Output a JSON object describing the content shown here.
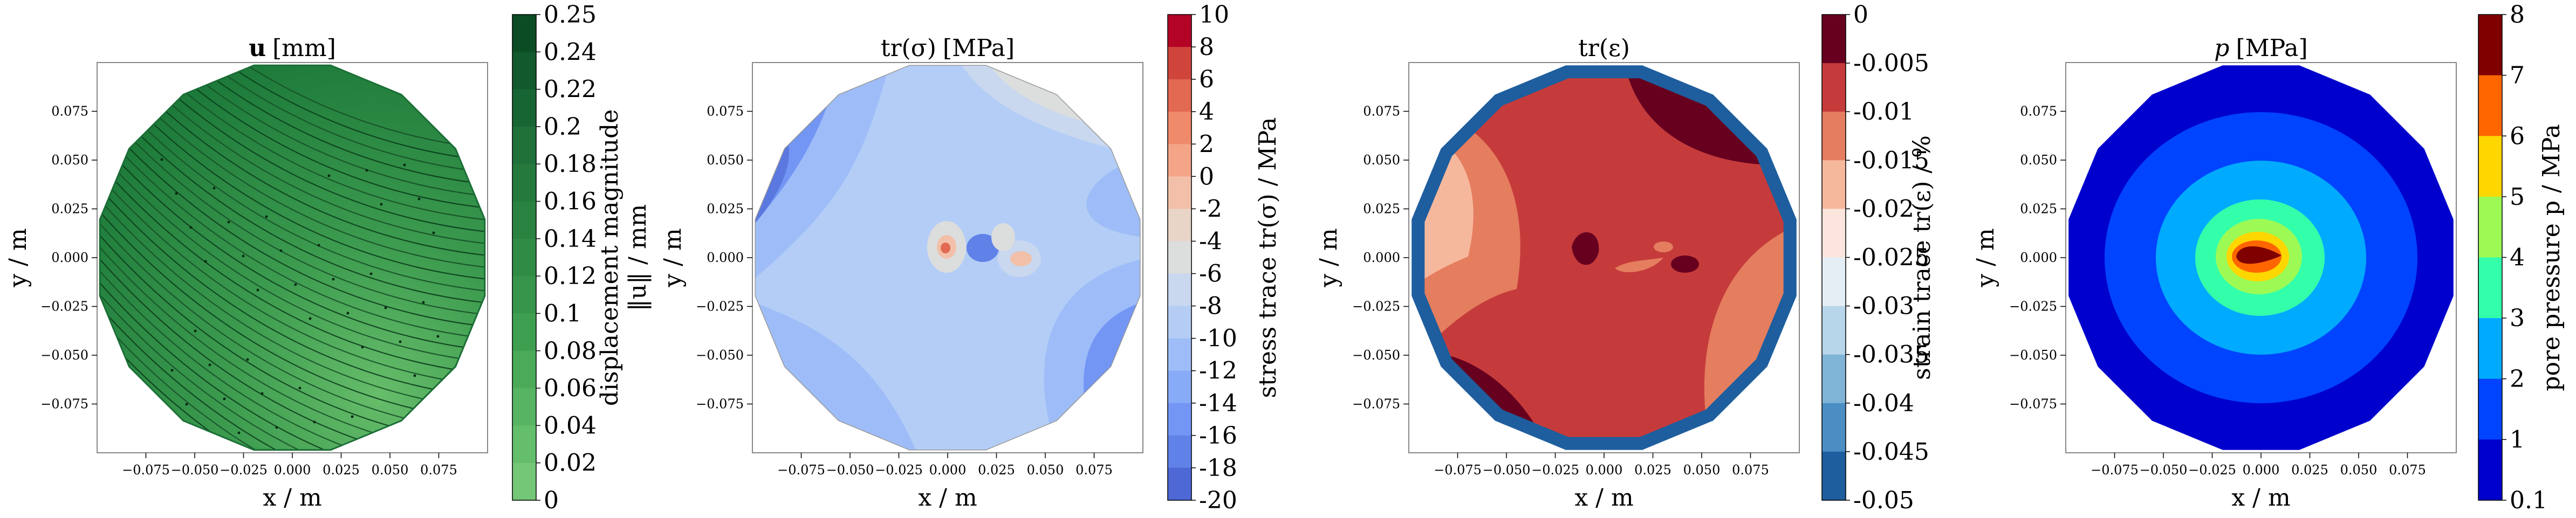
{
  "chart_data": [
    {
      "type": "contour",
      "title_main": "u",
      "title_unit": "[mm]",
      "xlabel": "x / m",
      "ylabel": "y / m",
      "xticks": [
        "−0.075",
        "−0.050",
        "−0.025",
        "0.000",
        "0.025",
        "0.050",
        "0.075"
      ],
      "yticks": [
        "0.075",
        "0.050",
        "0.025",
        "0.000",
        "−0.025",
        "−0.050",
        "−0.075"
      ],
      "xlim": [
        -0.1,
        0.1
      ],
      "ylim": [
        -0.1,
        0.1
      ],
      "colorbar": {
        "label_line1": "displacement magnitude",
        "label_line2": "‖u‖ / mm",
        "ticks": [
          "0.25",
          "0.24",
          "0.22",
          "0.2",
          "0.18",
          "0.16",
          "0.14",
          "0.12",
          "0.1",
          "0.08",
          "0.06",
          "0.04",
          "0.02",
          "0"
        ],
        "colors": [
          "#0b4c25",
          "#12592d",
          "#186534",
          "#1f7039",
          "#25793d",
          "#2a8240",
          "#308b45",
          "#37954b",
          "#3e9f51",
          "#4aaa59",
          "#56b463",
          "#64be6c",
          "#74c776"
        ]
      },
      "field": {
        "description": "nearly uniform green displacement with streamlines",
        "fill": "#2e8b43"
      }
    },
    {
      "type": "contour",
      "title_main": "tr(σ)",
      "title_unit": "[MPa]",
      "xlabel": "x / m",
      "ylabel": "y / m",
      "xticks": [
        "−0.075",
        "−0.050",
        "−0.025",
        "0.000",
        "0.025",
        "0.050",
        "0.075"
      ],
      "yticks": [
        "0.075",
        "0.050",
        "0.025",
        "0.000",
        "−0.025",
        "−0.050",
        "−0.075"
      ],
      "xlim": [
        -0.1,
        0.1
      ],
      "ylim": [
        -0.1,
        0.1
      ],
      "colorbar": {
        "label_line1": "stress trace tr(σ) / MPa",
        "ticks": [
          "10",
          "8",
          "6",
          "4",
          "2",
          "0",
          "-2",
          "-4",
          "-6",
          "-8",
          "-10",
          "-12",
          "-14",
          "-16",
          "-18",
          "-20"
        ],
        "colors": [
          "#b40426",
          "#cf453c",
          "#e26952",
          "#ef8a6a",
          "#f4a587",
          "#f2c0a9",
          "#e9d5c8",
          "#dcdddd",
          "#c9d7ef",
          "#b5cdf5",
          "#9ebdf8",
          "#88abf7",
          "#7396f5",
          "#6081e8",
          "#4e68d6"
        ]
      }
    },
    {
      "type": "contour",
      "title_main": "tr(ε)",
      "title_unit": "",
      "xlabel": "x / m",
      "ylabel": "y / m",
      "xticks": [
        "−0.075",
        "−0.050",
        "−0.025",
        "0.000",
        "0.025",
        "0.050",
        "0.075"
      ],
      "yticks": [
        "0.075",
        "0.050",
        "0.025",
        "0.000",
        "−0.025",
        "−0.050",
        "−0.075"
      ],
      "xlim": [
        -0.1,
        0.1
      ],
      "ylim": [
        -0.1,
        0.1
      ],
      "colorbar": {
        "label_line1": "strain trace tr(ε) / %",
        "ticks": [
          "0",
          "-0.005",
          "-0.01",
          "-0.015",
          "-0.02",
          "-0.025",
          "-0.03",
          "-0.035",
          "-0.04",
          "-0.045",
          "-0.05"
        ],
        "colors": [
          "#67001f",
          "#c53b3b",
          "#e57d5f",
          "#f6b89c",
          "#fce5dc",
          "#e6eef5",
          "#b8d6e9",
          "#7fb4d7",
          "#4a8ec3",
          "#1e5e9e"
        ]
      }
    },
    {
      "type": "contour",
      "title_main": "p",
      "title_unit": "[MPa]",
      "xlabel": "x / m",
      "ylabel": "y / m",
      "xticks": [
        "−0.075",
        "−0.050",
        "−0.025",
        "0.000",
        "0.025",
        "0.050",
        "0.075"
      ],
      "yticks": [
        "0.075",
        "0.050",
        "0.025",
        "0.000",
        "−0.025",
        "−0.050",
        "−0.075"
      ],
      "xlim": [
        -0.1,
        0.1
      ],
      "ylim": [
        -0.1,
        0.1
      ],
      "colorbar": {
        "label_line1": "pore pressure p / MPa",
        "ticks": [
          "8",
          "7",
          "6",
          "5",
          "4",
          "3",
          "2",
          "1",
          "0.1"
        ],
        "colors": [
          "#800000",
          "#ff6600",
          "#ffd700",
          "#9dfa55",
          "#33ffaa",
          "#00aaff",
          "#0044ff",
          "#0000cc"
        ]
      }
    }
  ]
}
